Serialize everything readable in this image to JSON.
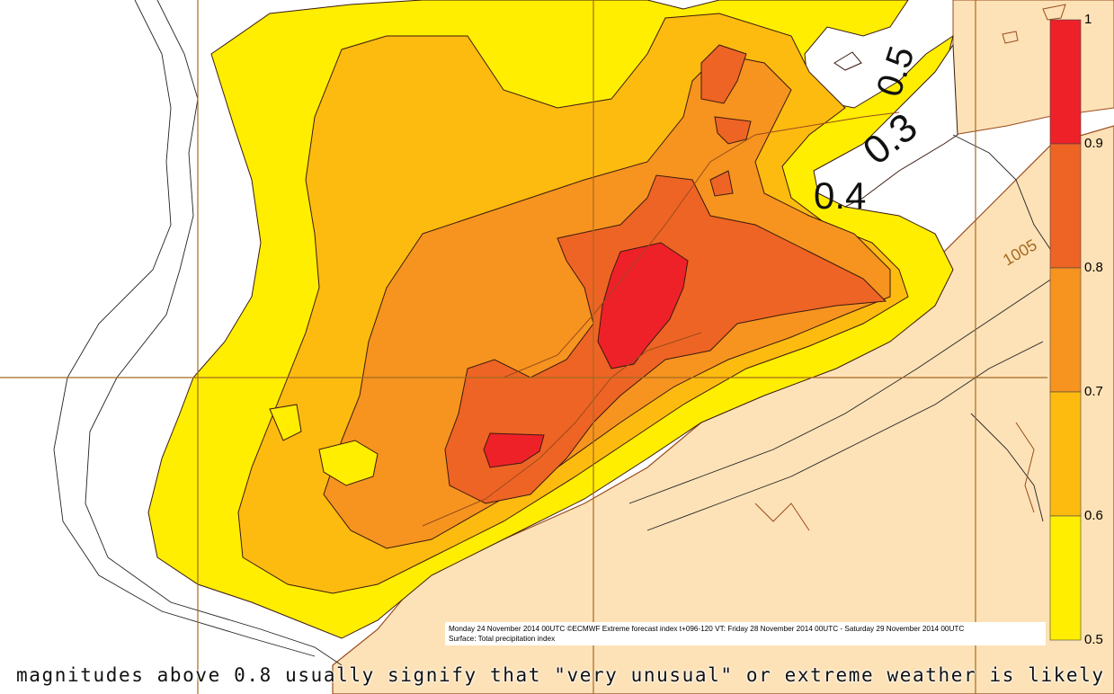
{
  "map": {
    "title_line": "Monday 24 November 2014 00UTC ©ECMWF Extreme forecast index t+096-120 VT: Friday 28 November 2014 00UTC - Saturday 29 November 2014 00UTC",
    "subtitle_line": "Surface: Total precipitation index",
    "contour_labels": [
      "0.3",
      "0.4",
      "0.5",
      "1005"
    ],
    "colors": {
      "sea": "#ffffff",
      "land": "#fde2b7",
      "coast": "#9a4b1c",
      "grid": "#a46a22",
      "band_0_5": "#ffee00",
      "band_0_6": "#fdbb10",
      "band_0_7": "#f6941f",
      "band_0_8": "#ee6424",
      "band_0_9": "#ee2129"
    }
  },
  "legend": {
    "labels": [
      "1",
      "0.9",
      "0.8",
      "0.7",
      "0.6",
      "0.5"
    ],
    "colors": [
      "#ee2129",
      "#ee6424",
      "#f6941f",
      "#fdbb10",
      "#ffee00"
    ]
  },
  "caption": "magnitudes above 0.8 usually signify that \"very unusual\" or extreme weather is likely"
}
